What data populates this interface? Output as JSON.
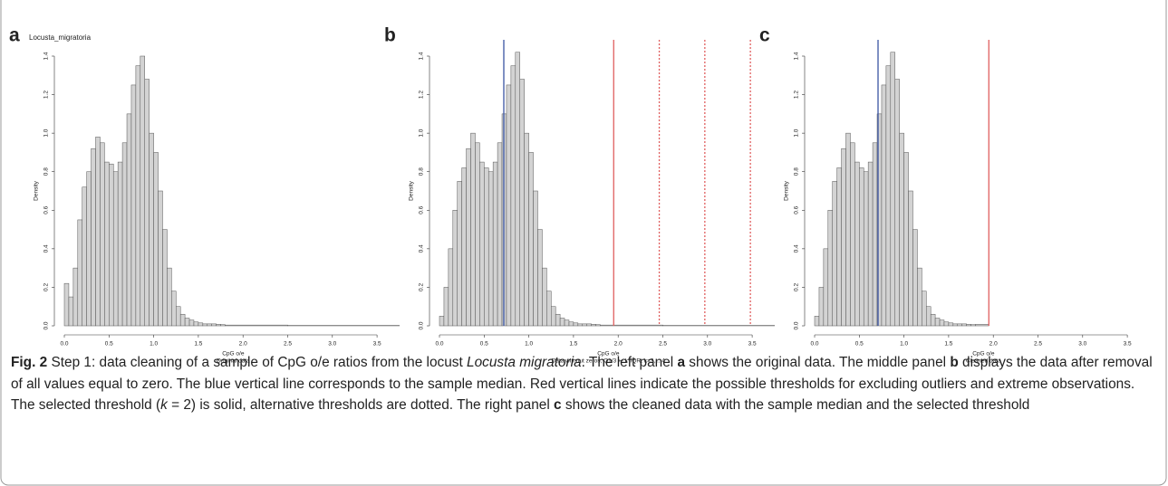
{
  "chart_data": [
    {
      "type": "histogram",
      "panel_label": "a",
      "title": "Locusta_migratoria",
      "xlabel": "CpG o/e",
      "subtitle": "Original data",
      "ylabel": "Density",
      "color": "#d3d3d3",
      "bins": [
        0,
        0.05,
        0.1,
        0.15,
        0.2,
        0.25,
        0.3,
        0.35,
        0.4,
        0.45,
        0.5,
        0.55,
        0.6,
        0.65,
        0.7,
        0.75,
        0.8,
        0.85,
        0.9,
        0.95,
        1.0,
        1.05,
        1.1,
        1.15,
        1.2,
        1.25,
        1.3,
        1.35,
        1.4,
        1.45,
        1.5,
        1.55,
        1.6,
        1.65,
        1.7,
        1.75,
        1.8,
        2.5,
        3.75
      ],
      "values": [
        0.22,
        0.15,
        0.3,
        0.55,
        0.72,
        0.8,
        0.92,
        0.98,
        0.95,
        0.85,
        0.84,
        0.8,
        0.85,
        0.95,
        1.1,
        1.25,
        1.35,
        1.4,
        1.28,
        1.0,
        0.9,
        0.7,
        0.5,
        0.3,
        0.18,
        0.1,
        0.06,
        0.04,
        0.03,
        0.02,
        0.015,
        0.01,
        0.01,
        0.01,
        0.008,
        0.006,
        0.004,
        0.002
      ],
      "xlim": [
        0,
        3.78
      ],
      "ylim": [
        0,
        1.4
      ],
      "xticks": [
        {
          "value": 0,
          "label": "0.0"
        },
        {
          "value": 0.5,
          "label": "0.5"
        },
        {
          "value": 1,
          "label": "1.0"
        },
        {
          "value": 1.5,
          "label": "1.5"
        },
        {
          "value": 2,
          "label": "2.0"
        },
        {
          "value": 2.5,
          "label": "2.5"
        },
        {
          "value": 3,
          "label": "3.0"
        },
        {
          "value": 3.5,
          "label": "3.5"
        }
      ],
      "yticks": [
        {
          "value": 0,
          "label": "0.0"
        },
        {
          "value": 0.2,
          "label": "0.2"
        },
        {
          "value": 0.4,
          "label": "0.4"
        },
        {
          "value": 0.6,
          "label": "0.6"
        },
        {
          "value": 0.8,
          "label": "0.8"
        },
        {
          "value": 1,
          "label": "1.0"
        },
        {
          "value": 1.2,
          "label": "1.2"
        },
        {
          "value": 1.4,
          "label": "1.4"
        }
      ],
      "vlines": []
    },
    {
      "type": "histogram",
      "panel_label": "b",
      "xlabel": "CpG o/e",
      "subtitle": "Data without zeros, Q1/3 +- k*IQR, k=2,...,4",
      "ylabel": "Density",
      "color": "#d3d3d3",
      "bins": [
        0,
        0.05,
        0.1,
        0.15,
        0.2,
        0.25,
        0.3,
        0.35,
        0.4,
        0.45,
        0.5,
        0.55,
        0.6,
        0.65,
        0.7,
        0.75,
        0.8,
        0.85,
        0.9,
        0.95,
        1.0,
        1.05,
        1.1,
        1.15,
        1.2,
        1.25,
        1.3,
        1.35,
        1.4,
        1.45,
        1.5,
        1.55,
        1.6,
        1.65,
        1.7,
        1.75,
        1.8,
        2.5,
        3.75
      ],
      "values": [
        0.05,
        0.2,
        0.4,
        0.6,
        0.75,
        0.82,
        0.92,
        1.0,
        0.95,
        0.85,
        0.82,
        0.8,
        0.85,
        0.95,
        1.1,
        1.25,
        1.35,
        1.42,
        1.28,
        1.0,
        0.9,
        0.7,
        0.5,
        0.3,
        0.18,
        0.1,
        0.06,
        0.04,
        0.03,
        0.02,
        0.015,
        0.01,
        0.01,
        0.01,
        0.008,
        0.006,
        0.004,
        0.002
      ],
      "xlim": [
        0,
        3.78
      ],
      "ylim": [
        0,
        1.4
      ],
      "xticks": [
        {
          "value": 0,
          "label": "0.0"
        },
        {
          "value": 0.5,
          "label": "0.5"
        },
        {
          "value": 1,
          "label": "1.0"
        },
        {
          "value": 1.5,
          "label": "1.5"
        },
        {
          "value": 2,
          "label": "2.0"
        },
        {
          "value": 2.5,
          "label": "2.5"
        },
        {
          "value": 3,
          "label": "3.0"
        },
        {
          "value": 3.5,
          "label": "3.5"
        }
      ],
      "yticks": [
        {
          "value": 0,
          "label": "0.0"
        },
        {
          "value": 0.2,
          "label": "0.2"
        },
        {
          "value": 0.4,
          "label": "0.4"
        },
        {
          "value": 0.6,
          "label": "0.6"
        },
        {
          "value": 0.8,
          "label": "0.8"
        },
        {
          "value": 1,
          "label": "1.0"
        },
        {
          "value": 1.2,
          "label": "1.2"
        },
        {
          "value": 1.4,
          "label": "1.4"
        }
      ],
      "vlines": [
        {
          "value": 0.72,
          "color": "#3b55a3",
          "style": "solid"
        },
        {
          "value": 1.95,
          "color": "#e06060",
          "style": "solid"
        },
        {
          "value": 2.46,
          "color": "#e06060",
          "style": "dotted"
        },
        {
          "value": 2.97,
          "color": "#e06060",
          "style": "dotted"
        },
        {
          "value": 3.48,
          "color": "#e06060",
          "style": "dotted"
        }
      ]
    },
    {
      "type": "histogram",
      "panel_label": "c",
      "xlabel": "CpG o/e",
      "subtitle": "Cleaned data",
      "ylabel": "Density",
      "color": "#d3d3d3",
      "bins": [
        0,
        0.05,
        0.1,
        0.15,
        0.2,
        0.25,
        0.3,
        0.35,
        0.4,
        0.45,
        0.5,
        0.55,
        0.6,
        0.65,
        0.7,
        0.75,
        0.8,
        0.85,
        0.9,
        0.95,
        1.0,
        1.05,
        1.1,
        1.15,
        1.2,
        1.25,
        1.3,
        1.35,
        1.4,
        1.45,
        1.5,
        1.55,
        1.6,
        1.65,
        1.7,
        1.75,
        1.8,
        1.95
      ],
      "values": [
        0.05,
        0.2,
        0.4,
        0.6,
        0.75,
        0.82,
        0.92,
        1.0,
        0.95,
        0.85,
        0.82,
        0.8,
        0.85,
        0.95,
        1.1,
        1.25,
        1.35,
        1.42,
        1.28,
        1.0,
        0.9,
        0.7,
        0.5,
        0.3,
        0.18,
        0.1,
        0.06,
        0.04,
        0.03,
        0.02,
        0.015,
        0.01,
        0.01,
        0.01,
        0.008,
        0.006,
        0.008
      ],
      "xlim": [
        0,
        3.78
      ],
      "ylim": [
        0,
        1.4
      ],
      "xticks": [
        {
          "value": 0,
          "label": "0.0"
        },
        {
          "value": 0.5,
          "label": "0.5"
        },
        {
          "value": 1,
          "label": "1.0"
        },
        {
          "value": 1.5,
          "label": "1.5"
        },
        {
          "value": 2,
          "label": "2.0"
        },
        {
          "value": 2.5,
          "label": "2.5"
        },
        {
          "value": 3,
          "label": "3.0"
        },
        {
          "value": 3.5,
          "label": "3.5"
        }
      ],
      "yticks": [
        {
          "value": 0,
          "label": "0.0"
        },
        {
          "value": 0.2,
          "label": "0.2"
        },
        {
          "value": 0.4,
          "label": "0.4"
        },
        {
          "value": 0.6,
          "label": "0.6"
        },
        {
          "value": 0.8,
          "label": "0.8"
        },
        {
          "value": 1,
          "label": "1.0"
        },
        {
          "value": 1.2,
          "label": "1.2"
        },
        {
          "value": 1.4,
          "label": "1.4"
        }
      ],
      "vlines": [
        {
          "value": 0.71,
          "color": "#3b55a3",
          "style": "solid"
        },
        {
          "value": 1.95,
          "color": "#e06060",
          "style": "solid"
        }
      ]
    }
  ],
  "caption": {
    "label": "Fig. 2",
    "parts": [
      "Step 1: data cleaning of a sample of CpG o/e ratios from the locust ",
      "Locusta migratoria",
      ". The left panel ",
      "a",
      " shows the original data. The middle panel ",
      "b",
      " displays the data after removal of all values equal to zero. The blue vertical line corresponds to the sample median. Red vertical lines indicate the possible thresholds for excluding outliers and extreme observations. The selected threshold (",
      "k",
      " = 2) is solid, alternative thresholds are dotted. The right panel ",
      "c",
      " shows the cleaned data with the sample median and the selected threshold"
    ]
  }
}
